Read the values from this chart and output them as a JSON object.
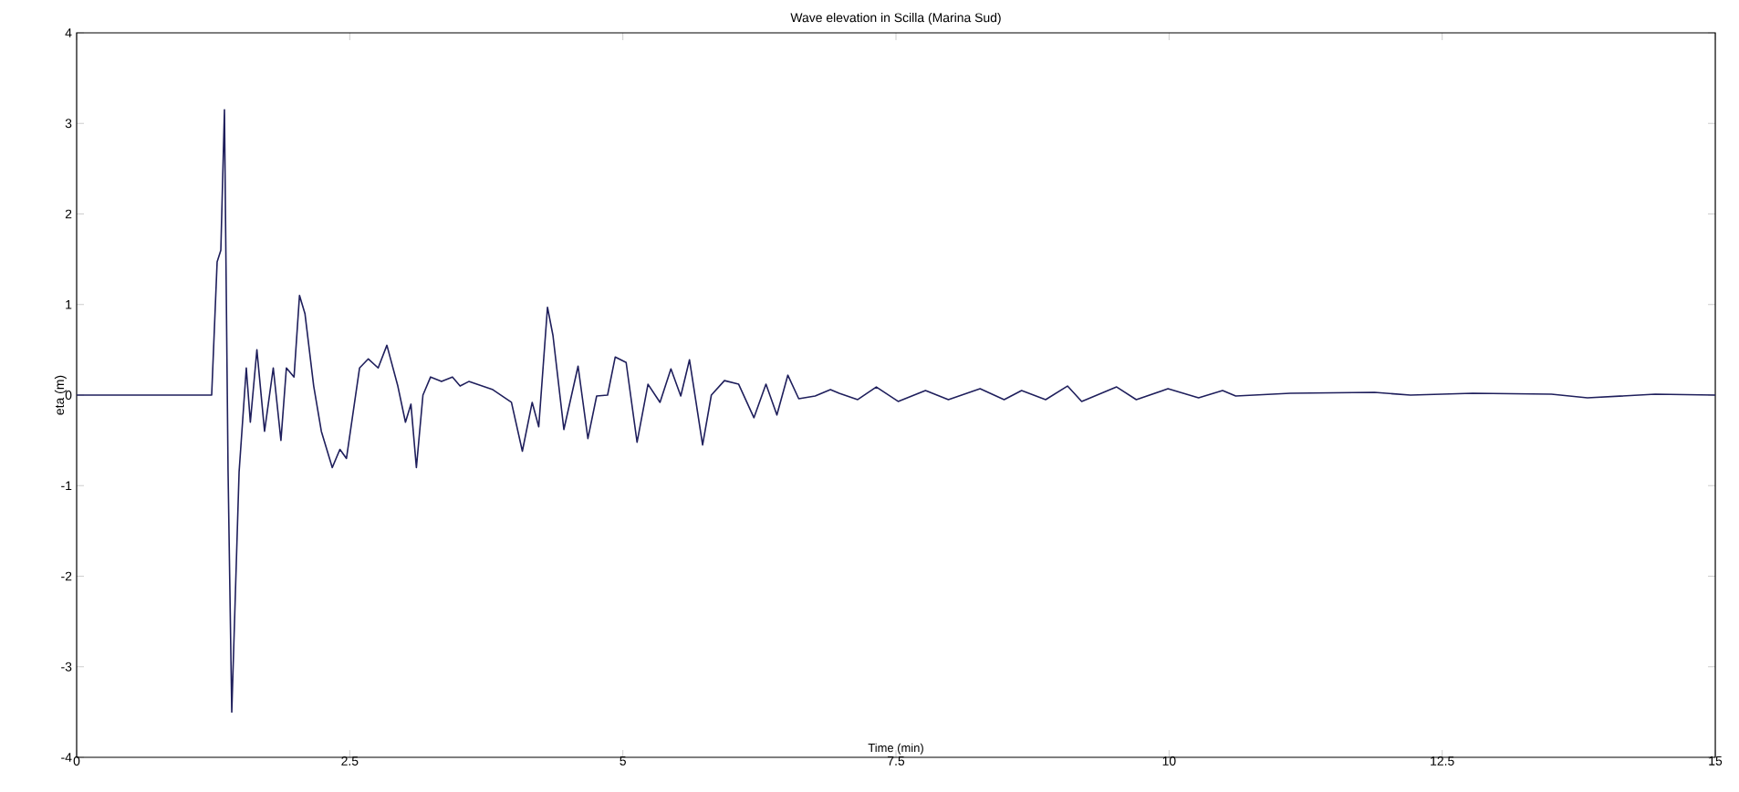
{
  "chart_data": {
    "type": "line",
    "title": "Wave elevation in Scilla (Marina Sud)",
    "xlabel": "Time (min)",
    "ylabel": "eta (m)",
    "x": [
      0,
      1.236,
      1.286,
      1.32,
      1.353,
      1.386,
      1.42,
      1.487,
      1.553,
      1.59,
      1.65,
      1.72,
      1.8,
      1.87,
      1.92,
      1.99,
      2.04,
      2.09,
      2.17,
      2.24,
      2.34,
      2.41,
      2.47,
      2.59,
      2.67,
      2.76,
      2.84,
      2.94,
      3.01,
      3.06,
      3.11,
      3.17,
      3.24,
      3.34,
      3.44,
      3.51,
      3.59,
      3.81,
      3.98,
      4.08,
      4.17,
      4.23,
      4.31,
      4.36,
      4.46,
      4.59,
      4.68,
      4.76,
      4.86,
      4.93,
      5.03,
      5.13,
      5.23,
      5.34,
      5.44,
      5.53,
      5.61,
      5.73,
      5.81,
      5.93,
      6.06,
      6.2,
      6.31,
      6.41,
      6.51,
      6.61,
      6.76,
      6.9,
      6.98,
      7.15,
      7.32,
      7.52,
      7.77,
      7.98,
      8.27,
      8.49,
      8.65,
      8.87,
      9.07,
      9.2,
      9.52,
      9.7,
      9.99,
      10.27,
      10.49,
      10.61,
      11.11,
      11.88,
      12.21,
      12.78,
      13.5,
      13.83,
      14.45,
      15
    ],
    "series": [
      {
        "color": "#1f1f5c",
        "values": [
          0,
          0,
          1.47,
          1.6,
          3.15,
          -0.83,
          -3.5,
          -0.85,
          0.3,
          -0.3,
          0.5,
          -0.4,
          0.3,
          -0.5,
          0.3,
          0.2,
          1.1,
          0.9,
          0.1,
          -0.4,
          -0.8,
          -0.6,
          -0.7,
          0.3,
          0.4,
          0.3,
          0.55,
          0.1,
          -0.3,
          -0.1,
          -0.8,
          0.0,
          0.2,
          0.15,
          0.2,
          0.1,
          0.15,
          0.06,
          -0.08,
          -0.62,
          -0.08,
          -0.35,
          0.97,
          0.66,
          -0.38,
          0.32,
          -0.48,
          -0.01,
          0,
          0.42,
          0.36,
          -0.52,
          0.12,
          -0.08,
          0.29,
          -0.01,
          0.39,
          -0.55,
          0,
          0.16,
          0.12,
          -0.25,
          0.12,
          -0.22,
          0.22,
          -0.04,
          -0.01,
          0.06,
          0.02,
          -0.05,
          0.09,
          -0.07,
          0.05,
          -0.05,
          0.07,
          -0.05,
          0.05,
          -0.05,
          0.1,
          -0.07,
          0.09,
          -0.05,
          0.07,
          -0.03,
          0.05,
          -0.01,
          0.02,
          0.03,
          0,
          0.02,
          0.01,
          -0.03,
          0.01,
          0
        ]
      }
    ],
    "xlim": [
      0,
      15
    ],
    "ylim": [
      -4,
      4
    ],
    "xticks": [
      0,
      2.5,
      5,
      7.5,
      10,
      12.5,
      15
    ],
    "yticks": [
      -4,
      -3,
      -2,
      -1,
      0,
      1,
      2,
      3,
      4
    ],
    "grid": false,
    "marker": "none",
    "line_style": "solid"
  }
}
